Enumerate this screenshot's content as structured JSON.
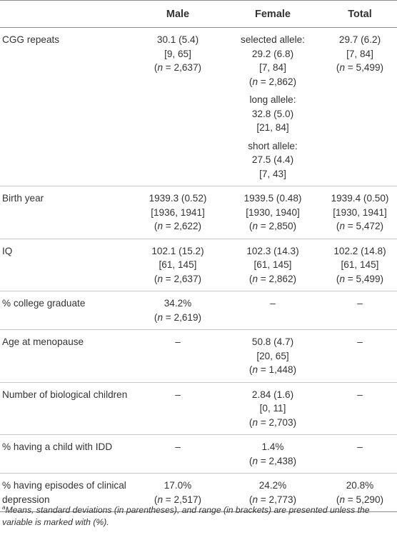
{
  "header": {
    "col0": "",
    "col1": "Male",
    "col2": "Female",
    "col3": "Total"
  },
  "rows": [
    {
      "label": "CGG repeats",
      "male": [
        [
          "30.1 (5.4)",
          "[9, 65]",
          "(n = 2,637)"
        ]
      ],
      "female": [
        [
          "selected allele:",
          "29.2 (6.8)",
          "[7, 84]",
          "(n = 2,862)"
        ],
        [
          "long allele:",
          "32.8 (5.0)",
          "[21, 84]"
        ],
        [
          "short allele:",
          "27.5 (4.4)",
          "[7, 43]"
        ]
      ],
      "total": [
        [
          "29.7 (6.2)",
          "[7, 84]",
          "(n = 5,499)"
        ]
      ]
    },
    {
      "label": "Birth year",
      "male": [
        [
          "1939.3 (0.52)",
          "[1936, 1941]",
          "(n = 2,622)"
        ]
      ],
      "female": [
        [
          "1939.5 (0.48)",
          "[1930, 1940]",
          "(n = 2,850)"
        ]
      ],
      "total": [
        [
          "1939.4 (0.50)",
          "[1930, 1941]",
          "(n = 5,472)"
        ]
      ]
    },
    {
      "label": "IQ",
      "male": [
        [
          "102.1 (15.2)",
          "[61, 145]",
          "(n = 2,637)"
        ]
      ],
      "female": [
        [
          "102.3 (14.3)",
          "[61, 145]",
          "(n = 2,862)"
        ]
      ],
      "total": [
        [
          "102.2 (14.8)",
          "[61, 145]",
          "(n = 5,499)"
        ]
      ]
    },
    {
      "label": "% college graduate",
      "male": [
        [
          "34.2%",
          "(n = 2,619)"
        ]
      ],
      "female": [
        [
          "–"
        ]
      ],
      "total": [
        [
          "–"
        ]
      ]
    },
    {
      "label": "Age at menopause",
      "male": [
        [
          "–"
        ]
      ],
      "female": [
        [
          "50.8 (4.7)",
          "[20, 65]",
          "(n = 1,448)"
        ]
      ],
      "total": [
        [
          "–"
        ]
      ]
    },
    {
      "label": "Number of biological children",
      "male": [
        [
          "–"
        ]
      ],
      "female": [
        [
          "2.84 (1.6)",
          "[0, 11]",
          "(n = 2,703)"
        ]
      ],
      "total": [
        [
          "–"
        ]
      ]
    },
    {
      "label": "% having a child with IDD",
      "male": [
        [
          "–"
        ]
      ],
      "female": [
        [
          "1.4%",
          "(n = 2,438)"
        ]
      ],
      "total": [
        [
          "–"
        ]
      ]
    },
    {
      "label": "% having episodes of clinical depression",
      "male": [
        [
          "17.0%",
          "(n = 2,517)"
        ]
      ],
      "female": [
        [
          "24.2%",
          "(n = 2,773)"
        ]
      ],
      "total": [
        [
          "20.8%",
          "(n = 5,290)"
        ]
      ]
    }
  ],
  "footnote": {
    "marker": "a",
    "text": "Means, standard deviations (in parentheses), and range (in brackets) are presented unless the variable is marked with (%)."
  }
}
